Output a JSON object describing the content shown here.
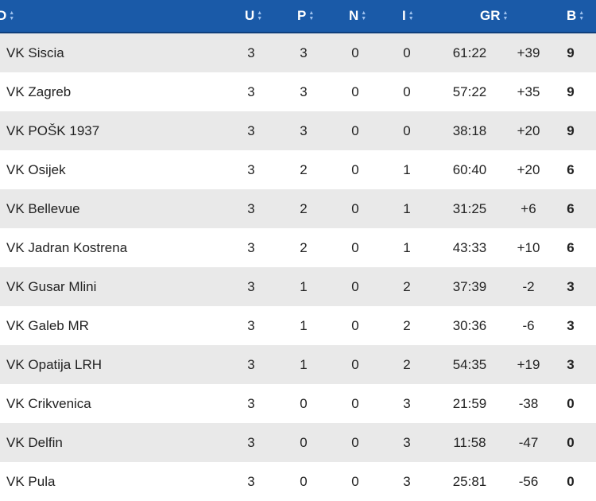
{
  "header": {
    "team_label": "D",
    "u": "U",
    "p": "P",
    "n": "N",
    "i": "I",
    "gr": "GR",
    "b": "B",
    "sort_up": "▲",
    "sort_down": "▼",
    "colors": {
      "header_bg": "#1a5aa8",
      "row_alt": "#e9e9e9"
    }
  },
  "rows": [
    {
      "team": "VK Siscia",
      "u": "3",
      "p": "3",
      "n": "0",
      "i": "0",
      "gr": "61:22",
      "diff": "+39",
      "b": "9"
    },
    {
      "team": "VK Zagreb",
      "u": "3",
      "p": "3",
      "n": "0",
      "i": "0",
      "gr": "57:22",
      "diff": "+35",
      "b": "9"
    },
    {
      "team": "VK POŠK 1937",
      "u": "3",
      "p": "3",
      "n": "0",
      "i": "0",
      "gr": "38:18",
      "diff": "+20",
      "b": "9"
    },
    {
      "team": "VK Osijek",
      "u": "3",
      "p": "2",
      "n": "0",
      "i": "1",
      "gr": "60:40",
      "diff": "+20",
      "b": "6"
    },
    {
      "team": "VK Bellevue",
      "u": "3",
      "p": "2",
      "n": "0",
      "i": "1",
      "gr": "31:25",
      "diff": "+6",
      "b": "6"
    },
    {
      "team": "VK Jadran Kostrena",
      "u": "3",
      "p": "2",
      "n": "0",
      "i": "1",
      "gr": "43:33",
      "diff": "+10",
      "b": "6"
    },
    {
      "team": "VK Gusar Mlini",
      "u": "3",
      "p": "1",
      "n": "0",
      "i": "2",
      "gr": "37:39",
      "diff": "-2",
      "b": "3"
    },
    {
      "team": "VK Galeb MR",
      "u": "3",
      "p": "1",
      "n": "0",
      "i": "2",
      "gr": "30:36",
      "diff": "-6",
      "b": "3"
    },
    {
      "team": "VK Opatija LRH",
      "u": "3",
      "p": "1",
      "n": "0",
      "i": "2",
      "gr": "54:35",
      "diff": "+19",
      "b": "3"
    },
    {
      "team": "VK Crikvenica",
      "u": "3",
      "p": "0",
      "n": "0",
      "i": "3",
      "gr": "21:59",
      "diff": "-38",
      "b": "0"
    },
    {
      "team": "VK Delfin",
      "u": "3",
      "p": "0",
      "n": "0",
      "i": "3",
      "gr": "11:58",
      "diff": "-47",
      "b": "0"
    },
    {
      "team": "VK Pula",
      "u": "3",
      "p": "0",
      "n": "0",
      "i": "3",
      "gr": "25:81",
      "diff": "-56",
      "b": "0"
    }
  ]
}
